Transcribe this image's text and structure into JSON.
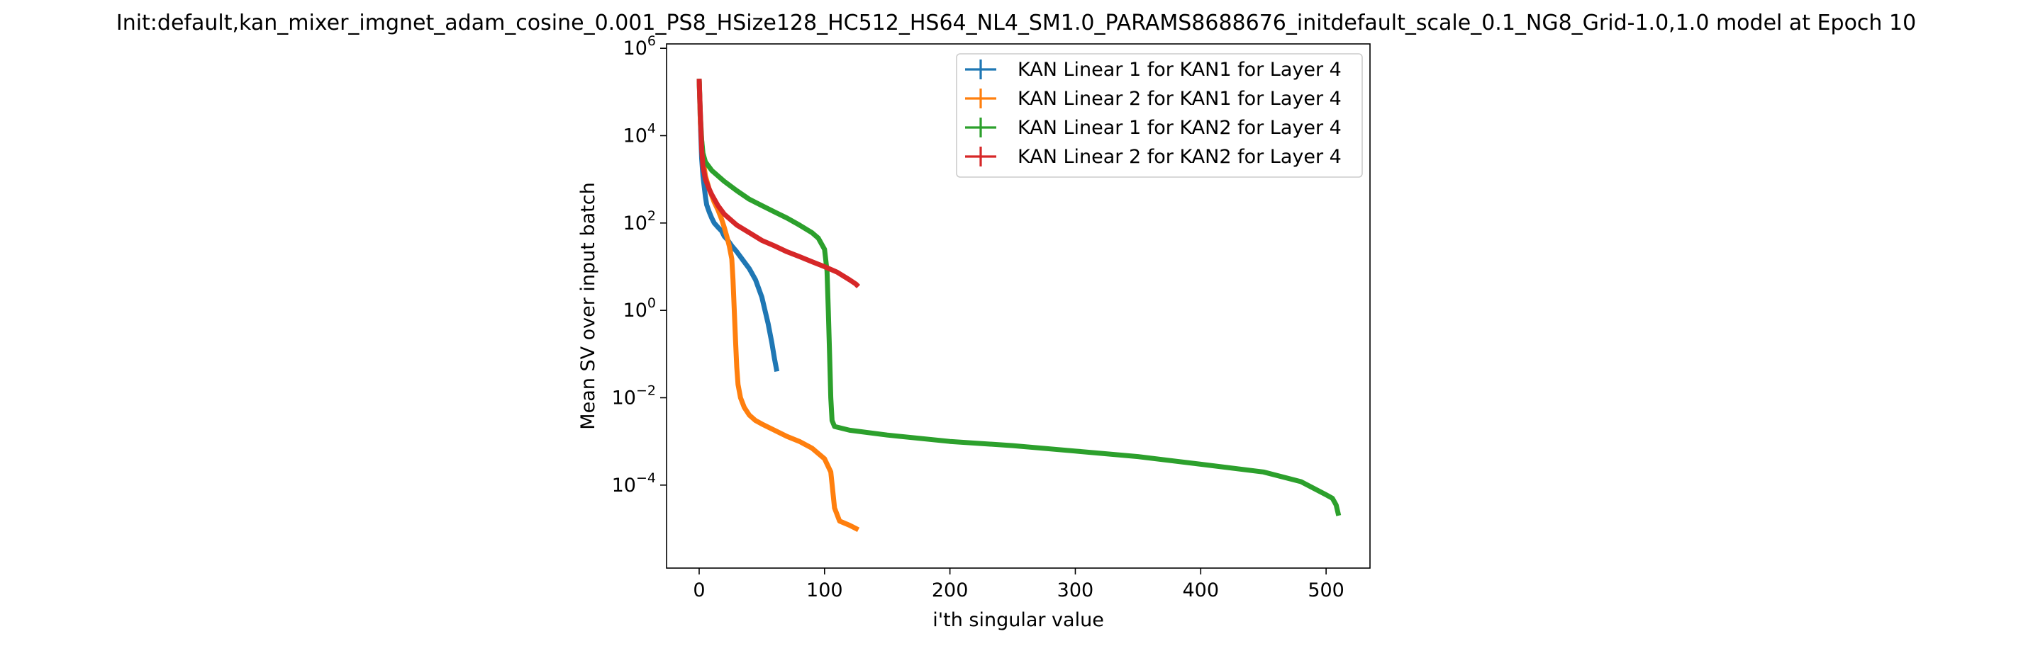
{
  "chart_data": {
    "type": "line",
    "title": "Init:default,kan_mixer_imgnet_adam_cosine_0.001_PS8_HSize128_HC512_HS64_NL4_SM1.0_PARAMS8688676_initdefault_scale_0.1_NG8_Grid-1.0,1.0 model at Epoch 10",
    "xlabel": "i'th singular value",
    "ylabel": "Mean SV over input batch",
    "xlim": [
      -26,
      535
    ],
    "ylim_log10": [
      -5.9,
      6.1
    ],
    "yscale": "log",
    "grid": false,
    "legend_position": "top-right",
    "xticks": [
      0,
      100,
      200,
      300,
      400,
      500
    ],
    "xtick_labels": [
      "0",
      "100",
      "200",
      "300",
      "400",
      "500"
    ],
    "yticks_log10": [
      -4,
      -2,
      0,
      2,
      4,
      6
    ],
    "ytick_labels": [
      {
        "base": "10",
        "exp": "−4"
      },
      {
        "base": "10",
        "exp": "−2"
      },
      {
        "base": "10",
        "exp": "0"
      },
      {
        "base": "10",
        "exp": "2"
      },
      {
        "base": "10",
        "exp": "4"
      },
      {
        "base": "10",
        "exp": "6"
      }
    ],
    "series": [
      {
        "name": "KAN Linear 1 for KAN1 for Layer 4",
        "color": "#1f77b4",
        "points": [
          [
            0,
            200000
          ],
          [
            1,
            20000
          ],
          [
            2,
            3000
          ],
          [
            3,
            1200
          ],
          [
            4,
            700
          ],
          [
            5,
            400
          ],
          [
            6,
            260
          ],
          [
            8,
            180
          ],
          [
            10,
            130
          ],
          [
            12,
            100
          ],
          [
            15,
            80
          ],
          [
            18,
            65
          ],
          [
            20,
            50
          ],
          [
            23,
            40
          ],
          [
            26,
            30
          ],
          [
            30,
            22
          ],
          [
            35,
            14
          ],
          [
            40,
            9
          ],
          [
            45,
            5
          ],
          [
            50,
            2
          ],
          [
            55,
            0.5
          ],
          [
            58,
            0.18
          ],
          [
            60,
            0.08
          ],
          [
            62,
            0.04
          ]
        ]
      },
      {
        "name": "KAN Linear 2 for KAN1 for Layer 4",
        "color": "#ff7f0e",
        "points": [
          [
            0,
            200000
          ],
          [
            1,
            20000
          ],
          [
            3,
            3000
          ],
          [
            5,
            1200
          ],
          [
            8,
            600
          ],
          [
            12,
            300
          ],
          [
            15,
            200
          ],
          [
            18,
            120
          ],
          [
            20,
            80
          ],
          [
            22,
            50
          ],
          [
            24,
            30
          ],
          [
            26,
            15
          ],
          [
            27,
            5
          ],
          [
            28,
            1
          ],
          [
            29,
            0.2
          ],
          [
            30,
            0.05
          ],
          [
            31,
            0.02
          ],
          [
            33,
            0.01
          ],
          [
            36,
            0.006
          ],
          [
            40,
            0.004
          ],
          [
            45,
            0.003
          ],
          [
            50,
            0.0025
          ],
          [
            60,
            0.0018
          ],
          [
            70,
            0.0013
          ],
          [
            80,
            0.001
          ],
          [
            90,
            0.0007
          ],
          [
            100,
            0.0004
          ],
          [
            105,
            0.0002
          ],
          [
            108,
            3e-05
          ],
          [
            112,
            1.5e-05
          ],
          [
            120,
            1.2e-05
          ],
          [
            127,
            9.5e-06
          ]
        ]
      },
      {
        "name": "KAN Linear 1 for KAN2 for Layer 4",
        "color": "#2ca02c",
        "points": [
          [
            0,
            200000
          ],
          [
            1,
            30000
          ],
          [
            2,
            8000
          ],
          [
            3,
            4000
          ],
          [
            5,
            2500
          ],
          [
            10,
            1600
          ],
          [
            20,
            900
          ],
          [
            30,
            550
          ],
          [
            40,
            350
          ],
          [
            50,
            250
          ],
          [
            60,
            180
          ],
          [
            70,
            130
          ],
          [
            80,
            90
          ],
          [
            90,
            60
          ],
          [
            95,
            45
          ],
          [
            100,
            25
          ],
          [
            102,
            8
          ],
          [
            103,
            1
          ],
          [
            104,
            0.1
          ],
          [
            105,
            0.01
          ],
          [
            106,
            0.003
          ],
          [
            108,
            0.0022
          ],
          [
            120,
            0.0018
          ],
          [
            150,
            0.0014
          ],
          [
            200,
            0.001
          ],
          [
            250,
            0.0008
          ],
          [
            300,
            0.0006
          ],
          [
            350,
            0.00045
          ],
          [
            400,
            0.0003
          ],
          [
            450,
            0.0002
          ],
          [
            480,
            0.00012
          ],
          [
            500,
            6e-05
          ],
          [
            505,
            5e-05
          ],
          [
            508,
            3.5e-05
          ],
          [
            510,
            2e-05
          ]
        ]
      },
      {
        "name": "KAN Linear 2 for KAN2 for Layer 4",
        "color": "#d62728",
        "points": [
          [
            0,
            200000
          ],
          [
            1,
            30000
          ],
          [
            2,
            5000
          ],
          [
            3,
            2000
          ],
          [
            5,
            1000
          ],
          [
            8,
            600
          ],
          [
            10,
            450
          ],
          [
            15,
            250
          ],
          [
            20,
            160
          ],
          [
            30,
            90
          ],
          [
            40,
            60
          ],
          [
            50,
            40
          ],
          [
            60,
            30
          ],
          [
            70,
            22
          ],
          [
            80,
            17
          ],
          [
            90,
            13
          ],
          [
            100,
            10
          ],
          [
            110,
            7.5
          ],
          [
            120,
            5
          ],
          [
            125,
            4
          ],
          [
            127,
            3.5
          ]
        ]
      }
    ]
  }
}
